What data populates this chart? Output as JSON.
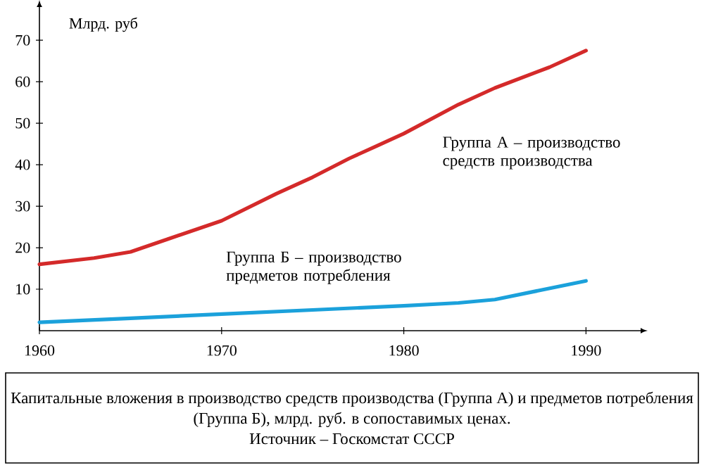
{
  "chart_data": {
    "type": "line",
    "ylabel": "Млрд. руб",
    "xlim": [
      1960,
      1993
    ],
    "ylim": [
      0,
      78
    ],
    "xticks": [
      1960,
      1970,
      1980,
      1990
    ],
    "yticks": [
      10,
      20,
      30,
      40,
      50,
      60,
      70
    ],
    "legend": false,
    "marker": "none",
    "series": [
      {
        "name": "Группа А – производство средств производства",
        "color": "#d42a2a",
        "x": [
          1960,
          1963,
          1965,
          1967,
          1970,
          1973,
          1975,
          1977,
          1978.5,
          1980,
          1983,
          1985,
          1988,
          1990
        ],
        "values": [
          16,
          17.5,
          19,
          22,
          26.5,
          33,
          37,
          41.5,
          44.5,
          47.5,
          54.5,
          58.5,
          63.5,
          67.5
        ]
      },
      {
        "name": "Группа Б – производство предметов потребления",
        "color": "#1ba1db",
        "x": [
          1960,
          1965,
          1970,
          1975,
          1980,
          1983,
          1985,
          1987,
          1990
        ],
        "values": [
          2,
          3,
          4,
          5,
          6,
          6.7,
          7.5,
          9.3,
          12
        ]
      }
    ],
    "annotations": [
      "Капитальные вложения в производство средств производства (Группа А) и предметов потребления (Группа Б), млрд. руб. в сопоставимых ценах.",
      "Источник – Госкомстат СССР"
    ]
  }
}
